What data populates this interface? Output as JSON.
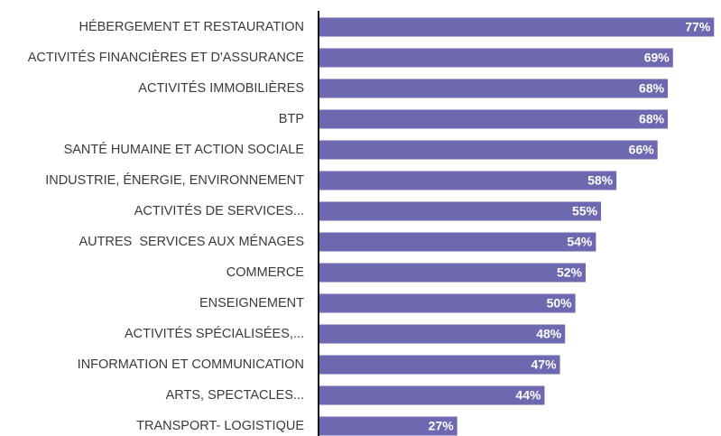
{
  "chart_data": {
    "type": "bar",
    "orientation": "horizontal",
    "categories": [
      "HÉBERGEMENT ET RESTAURATION",
      "ACTIVITÉS FINANCIÈRES ET D'ASSURANCE",
      "ACTIVITÉS IMMOBILIÈRES",
      "BTP",
      "SANTÉ HUMAINE ET ACTION SOCIALE",
      "INDUSTRIE, ÉNERGIE, ENVIRONNEMENT",
      "ACTIVITÉS DE SERVICES...",
      "AUTRES  SERVICES AUX MÉNAGES",
      "COMMERCE",
      "ENSEIGNEMENT",
      "ACTIVITÉS SPÉCIALISÉES,...",
      "INFORMATION ET COMMUNICATION",
      "ARTS, SPECTACLES...",
      "TRANSPORT- LOGISTIQUE"
    ],
    "values": [
      77,
      69,
      68,
      68,
      66,
      58,
      55,
      54,
      52,
      50,
      48,
      47,
      44,
      27
    ],
    "value_labels": [
      "77%",
      "69%",
      "68%",
      "68%",
      "66%",
      "58%",
      "55%",
      "54%",
      "52%",
      "50%",
      "48%",
      "47%",
      "44%",
      "27%"
    ],
    "color": "#6e68b0",
    "xlim": [
      0,
      78
    ]
  }
}
